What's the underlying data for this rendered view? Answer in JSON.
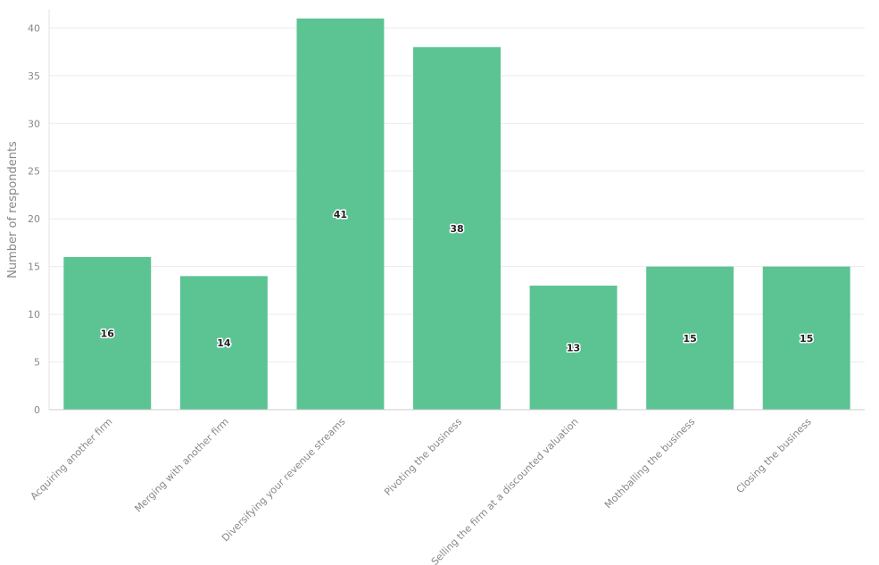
{
  "chart_data": {
    "type": "bar",
    "ylabel": "Number of respondents",
    "categories": [
      "Acquiring another firm",
      "Merging with another firm",
      "Diversifying your revenue streams",
      "Pivoting the business",
      "Selling the firm at a discounted valuation",
      "Mothballing the business",
      "Closing the business"
    ],
    "values": [
      16,
      14,
      41,
      38,
      13,
      15,
      15
    ],
    "color": "#5cc393",
    "ylim": [
      0,
      42
    ],
    "yticks": [
      0,
      5,
      10,
      15,
      20,
      25,
      30,
      35,
      40
    ],
    "grid": true
  }
}
